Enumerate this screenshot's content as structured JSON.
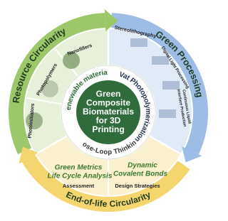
{
  "center": {
    "lines": [
      "Green",
      "Composite",
      "Biomaterials",
      "for 3D",
      "Printing"
    ]
  },
  "outer_ring": {
    "resource": "Resource Circularity",
    "processing": "Green Processing",
    "end_of_life": "End-of-life Circularity"
  },
  "inner_ring": {
    "renewable": "Renewable materials",
    "vat": "Vat Photopolymerization",
    "close_loop": "Close-Loop Thinking"
  },
  "sections": {
    "resource": {
      "items": [
        "Nanofillers",
        "Photopolymers",
        "Photoinitiators"
      ]
    },
    "processing": {
      "stereolithography": "Stereolithography",
      "dlp": "Digital Light Processing",
      "clip": [
        "Continuous Liquid",
        "Interface Production"
      ]
    },
    "assessment": {
      "lines": [
        "Green Metrics",
        "Life Cycle Analysis"
      ],
      "label": "Assessment"
    },
    "design": {
      "lines": [
        "Dynamic",
        "Covalent Bonds"
      ],
      "label": "Design Strategies"
    }
  }
}
